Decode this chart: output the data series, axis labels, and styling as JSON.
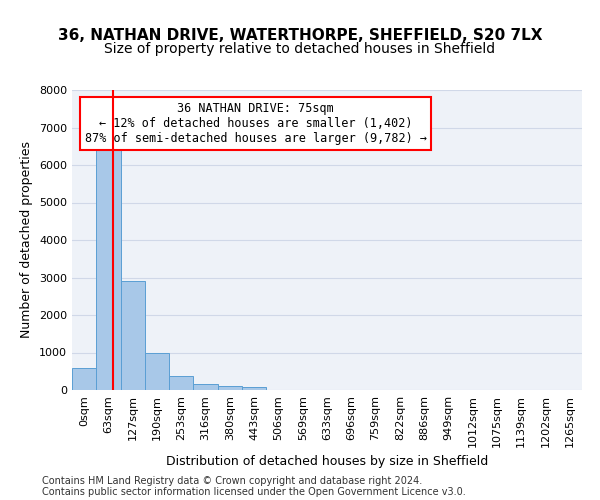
{
  "title_line1": "36, NATHAN DRIVE, WATERTHORPE, SHEFFIELD, S20 7LX",
  "title_line2": "Size of property relative to detached houses in Sheffield",
  "xlabel": "Distribution of detached houses by size in Sheffield",
  "ylabel": "Number of detached properties",
  "bin_labels": [
    "0sqm",
    "63sqm",
    "127sqm",
    "190sqm",
    "253sqm",
    "316sqm",
    "380sqm",
    "443sqm",
    "506sqm",
    "569sqm",
    "633sqm",
    "696sqm",
    "759sqm",
    "822sqm",
    "886sqm",
    "949sqm",
    "1012sqm",
    "1075sqm",
    "1139sqm",
    "1202sqm",
    "1265sqm"
  ],
  "bar_heights": [
    600,
    6400,
    2900,
    1000,
    380,
    170,
    100,
    80,
    10,
    5,
    2,
    1,
    1,
    0,
    0,
    0,
    0,
    0,
    0,
    0,
    0
  ],
  "bar_color": "#a8c8e8",
  "bar_edge_color": "#5a9fd4",
  "grid_color": "#d0d8e8",
  "bg_color": "#eef2f8",
  "annotation_text": "36 NATHAN DRIVE: 75sqm\n← 12% of detached houses are smaller (1,402)\n87% of semi-detached houses are larger (9,782) →",
  "annotation_box_color": "white",
  "annotation_box_edge": "red",
  "ylim": [
    0,
    8000
  ],
  "yticks": [
    0,
    1000,
    2000,
    3000,
    4000,
    5000,
    6000,
    7000,
    8000
  ],
  "footer_line1": "Contains HM Land Registry data © Crown copyright and database right 2024.",
  "footer_line2": "Contains public sector information licensed under the Open Government Licence v3.0.",
  "title_fontsize": 11,
  "subtitle_fontsize": 10,
  "axis_label_fontsize": 9,
  "tick_fontsize": 8,
  "annotation_fontsize": 8.5,
  "footer_fontsize": 7
}
